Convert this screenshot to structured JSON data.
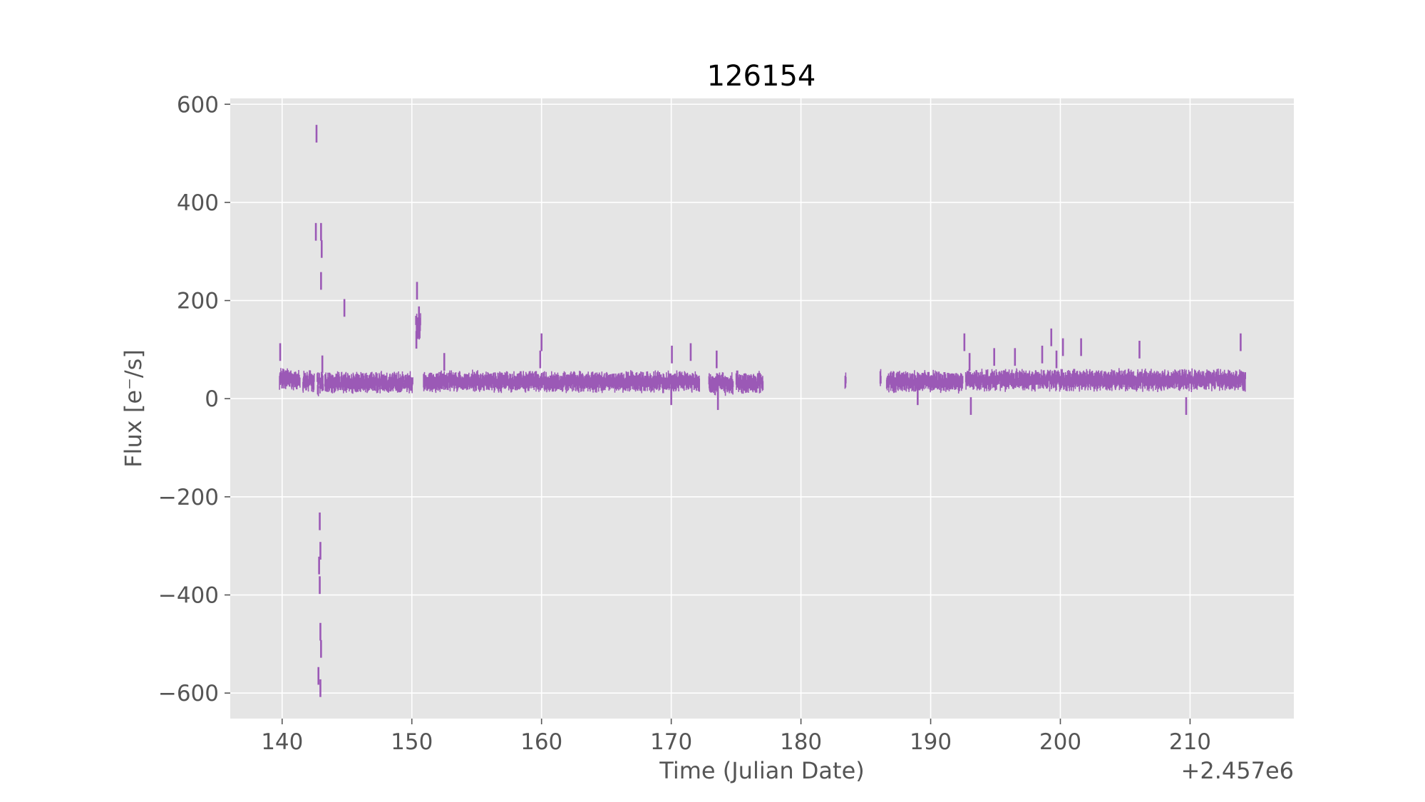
{
  "chart_data": {
    "type": "errorbar",
    "title": "126154",
    "xlabel": "Time (Julian Date)",
    "ylabel": "Flux [e⁻/s]",
    "x_offset_label": "+2.457e6",
    "xlim": [
      136,
      218
    ],
    "ylim": [
      -652,
      612
    ],
    "x_ticks": [
      140,
      150,
      160,
      170,
      180,
      190,
      200,
      210
    ],
    "y_ticks": [
      600,
      400,
      200,
      0,
      -200,
      -400,
      -600
    ],
    "y_tick_labels": [
      "600",
      "400",
      "200",
      "0",
      "−200",
      "−400",
      "−600"
    ],
    "grid": true,
    "background": "#e5e5e5",
    "grid_color": "#ffffff",
    "series_color": "#9b59b6",
    "segments": [
      {
        "start": 139.8,
        "end": 141.4,
        "base": 40,
        "amp": 14
      },
      {
        "start": 141.6,
        "end": 142.5,
        "base": 35,
        "amp": 18
      },
      {
        "start": 142.7,
        "end": 143.2,
        "base": 30,
        "amp": 25
      },
      {
        "start": 143.3,
        "end": 150.1,
        "base": 33,
        "amp": 15
      },
      {
        "start": 150.3,
        "end": 150.7,
        "base": 150,
        "amp": 40
      },
      {
        "start": 150.9,
        "end": 172.2,
        "base": 35,
        "amp": 14
      },
      {
        "start": 172.9,
        "end": 174.8,
        "base": 30,
        "amp": 18
      },
      {
        "start": 175.0,
        "end": 177.1,
        "base": 33,
        "amp": 16
      },
      {
        "start": 183.4,
        "end": 183.5,
        "base": 35,
        "amp": 12
      },
      {
        "start": 186.1,
        "end": 186.2,
        "base": 45,
        "amp": 12
      },
      {
        "start": 186.6,
        "end": 192.5,
        "base": 35,
        "amp": 15
      },
      {
        "start": 192.7,
        "end": 214.3,
        "base": 38,
        "amp": 15
      }
    ],
    "outliers": [
      {
        "x": 139.85,
        "y": 95
      },
      {
        "x": 142.65,
        "y": 540
      },
      {
        "x": 142.6,
        "y": 340
      },
      {
        "x": 143.0,
        "y": 340
      },
      {
        "x": 143.05,
        "y": 305
      },
      {
        "x": 143.0,
        "y": 240
      },
      {
        "x": 144.8,
        "y": 185
      },
      {
        "x": 143.1,
        "y": 70
      },
      {
        "x": 142.9,
        "y": -250
      },
      {
        "x": 142.95,
        "y": -310
      },
      {
        "x": 142.85,
        "y": -340
      },
      {
        "x": 142.9,
        "y": -380
      },
      {
        "x": 142.95,
        "y": -475
      },
      {
        "x": 143.0,
        "y": -510
      },
      {
        "x": 142.8,
        "y": -565
      },
      {
        "x": 142.95,
        "y": -590
      },
      {
        "x": 150.4,
        "y": 220
      },
      {
        "x": 150.55,
        "y": 170
      },
      {
        "x": 150.35,
        "y": 120
      },
      {
        "x": 152.5,
        "y": 75
      },
      {
        "x": 160.0,
        "y": 115
      },
      {
        "x": 159.9,
        "y": 80
      },
      {
        "x": 170.05,
        "y": 90
      },
      {
        "x": 171.5,
        "y": 95
      },
      {
        "x": 173.5,
        "y": 80
      },
      {
        "x": 173.6,
        "y": -5
      },
      {
        "x": 170.0,
        "y": 5
      },
      {
        "x": 192.6,
        "y": 115
      },
      {
        "x": 193.1,
        "y": -15
      },
      {
        "x": 193.0,
        "y": 75
      },
      {
        "x": 194.9,
        "y": 85
      },
      {
        "x": 196.5,
        "y": 85
      },
      {
        "x": 198.6,
        "y": 90
      },
      {
        "x": 199.3,
        "y": 125
      },
      {
        "x": 199.7,
        "y": 80
      },
      {
        "x": 200.2,
        "y": 105
      },
      {
        "x": 201.6,
        "y": 105
      },
      {
        "x": 206.1,
        "y": 100
      },
      {
        "x": 209.7,
        "y": -15
      },
      {
        "x": 213.9,
        "y": 115
      },
      {
        "x": 189.0,
        "y": 5
      }
    ]
  }
}
